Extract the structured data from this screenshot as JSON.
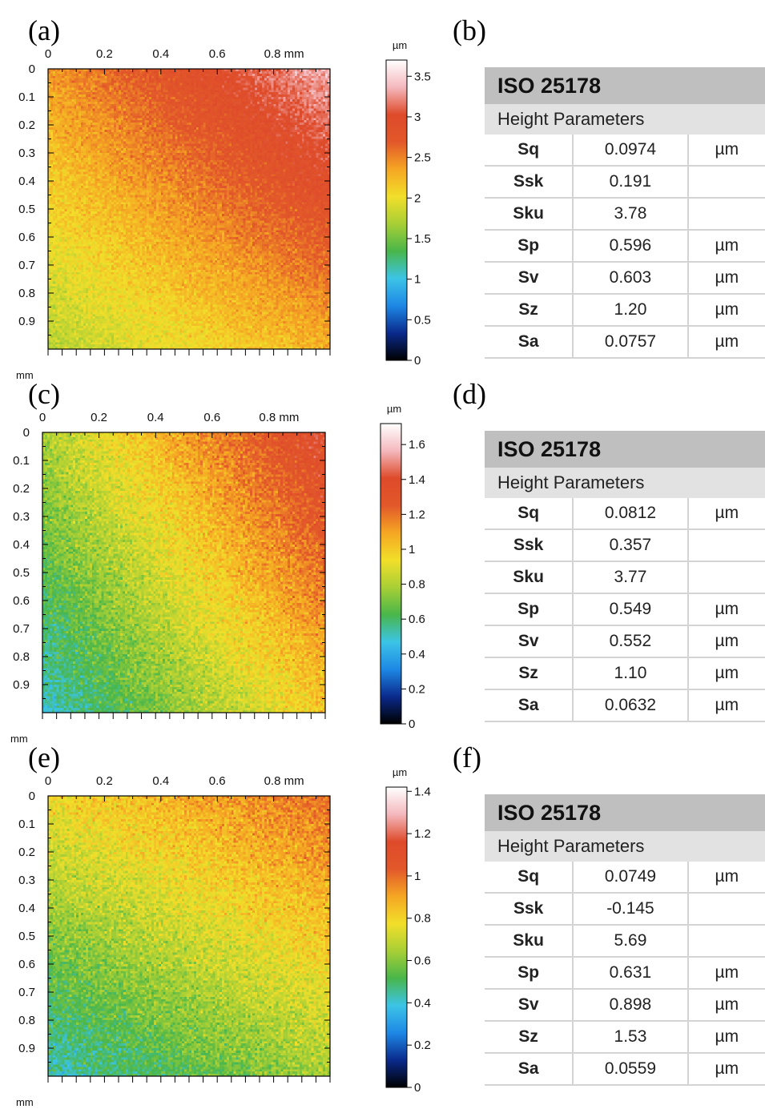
{
  "chart_data": [
    {
      "type": "heatmap",
      "panel_label": "(a)",
      "x_ticks": [
        "0",
        "0.2",
        "0.4",
        "0.6",
        "0.8 mm"
      ],
      "x_tick_values": [
        0,
        0.2,
        0.4,
        0.6,
        0.8
      ],
      "y_ticks": [
        "0",
        "0.1",
        "0.2",
        "0.3",
        "0.4",
        "0.5",
        "0.6",
        "0.7",
        "0.8",
        "0.9"
      ],
      "y_tick_values": [
        0,
        0.1,
        0.2,
        0.3,
        0.4,
        0.5,
        0.6,
        0.7,
        0.8,
        0.9
      ],
      "axis_unit": "mm",
      "xlim": [
        0,
        1
      ],
      "ylim": [
        0,
        1
      ],
      "colorbar": {
        "unit": "µm",
        "ticks": [
          "0",
          "0.5",
          "1",
          "1.5",
          "2",
          "2.5",
          "3",
          "3.5"
        ],
        "tick_values": [
          0,
          0.5,
          1,
          1.5,
          2,
          2.5,
          3,
          3.5
        ],
        "range": [
          0,
          3.7
        ]
      },
      "height_field": {
        "corners_um": {
          "top_left": 2.4,
          "top_right": 3.35,
          "bottom_left": 1.75,
          "bottom_right": 2.3
        },
        "noise_um": 0.13
      }
    },
    {
      "type": "heatmap",
      "panel_label": "(c)",
      "x_ticks": [
        "0",
        "0.2",
        "0.4",
        "0.6",
        "0.8 mm"
      ],
      "x_tick_values": [
        0,
        0.2,
        0.4,
        0.6,
        0.8
      ],
      "y_ticks": [
        "0",
        "0.1",
        "0.2",
        "0.3",
        "0.4",
        "0.5",
        "0.6",
        "0.7",
        "0.8",
        "0.9"
      ],
      "y_tick_values": [
        0,
        0.1,
        0.2,
        0.3,
        0.4,
        0.5,
        0.6,
        0.7,
        0.8,
        0.9
      ],
      "axis_unit": "mm",
      "xlim": [
        0,
        1
      ],
      "ylim": [
        0,
        1
      ],
      "colorbar": {
        "unit": "µm",
        "ticks": [
          "0",
          "0.2",
          "0.4",
          "0.6",
          "0.8",
          "1",
          "1.2",
          "1.4",
          "1.6"
        ],
        "tick_values": [
          0,
          0.2,
          0.4,
          0.6,
          0.8,
          1,
          1.2,
          1.4,
          1.6
        ],
        "range": [
          0,
          1.72
        ]
      },
      "height_field": {
        "corners_um": {
          "top_left": 0.8,
          "top_right": 1.4,
          "bottom_left": 0.5,
          "bottom_right": 1.0
        },
        "noise_um": 0.08
      }
    },
    {
      "type": "heatmap",
      "panel_label": "(e)",
      "x_ticks": [
        "0",
        "0.2",
        "0.4",
        "0.6",
        "0.8 mm"
      ],
      "x_tick_values": [
        0,
        0.2,
        0.4,
        0.6,
        0.8
      ],
      "y_ticks": [
        "0",
        "0.1",
        "0.2",
        "0.3",
        "0.4",
        "0.5",
        "0.6",
        "0.7",
        "0.8",
        "0.9"
      ],
      "y_tick_values": [
        0,
        0.1,
        0.2,
        0.3,
        0.4,
        0.5,
        0.6,
        0.7,
        0.8,
        0.9
      ],
      "axis_unit": "mm",
      "xlim": [
        0,
        1
      ],
      "ylim": [
        0,
        1
      ],
      "colorbar": {
        "unit": "µm",
        "ticks": [
          "0",
          "0.2",
          "0.4",
          "0.6",
          "0.8",
          "1",
          "1.2",
          "1.4"
        ],
        "tick_values": [
          0,
          0.2,
          0.4,
          0.6,
          0.8,
          1,
          1.2,
          1.4
        ],
        "range": [
          0,
          1.42
        ]
      },
      "height_field": {
        "corners_um": {
          "top_left": 0.78,
          "top_right": 1.0,
          "bottom_left": 0.42,
          "bottom_right": 0.65
        },
        "noise_um": 0.07
      }
    }
  ],
  "tables": [
    {
      "panel_label": "(b)",
      "title": "ISO 25178",
      "subtitle": "Height Parameters",
      "rows": [
        {
          "name": "Sq",
          "value": "0.0974",
          "unit": "µm"
        },
        {
          "name": "Ssk",
          "value": "0.191",
          "unit": ""
        },
        {
          "name": "Sku",
          "value": "3.78",
          "unit": ""
        },
        {
          "name": "Sp",
          "value": "0.596",
          "unit": "µm"
        },
        {
          "name": "Sv",
          "value": "0.603",
          "unit": "µm"
        },
        {
          "name": "Sz",
          "value": "1.20",
          "unit": "µm"
        },
        {
          "name": "Sa",
          "value": "0.0757",
          "unit": "µm"
        }
      ]
    },
    {
      "panel_label": "(d)",
      "title": "ISO 25178",
      "subtitle": "Height Parameters",
      "rows": [
        {
          "name": "Sq",
          "value": "0.0812",
          "unit": "µm"
        },
        {
          "name": "Ssk",
          "value": "0.357",
          "unit": ""
        },
        {
          "name": "Sku",
          "value": "3.77",
          "unit": ""
        },
        {
          "name": "Sp",
          "value": "0.549",
          "unit": "µm"
        },
        {
          "name": "Sv",
          "value": "0.552",
          "unit": "µm"
        },
        {
          "name": "Sz",
          "value": "1.10",
          "unit": "µm"
        },
        {
          "name": "Sa",
          "value": "0.0632",
          "unit": "µm"
        }
      ]
    },
    {
      "panel_label": "(f)",
      "title": "ISO 25178",
      "subtitle": "Height Parameters",
      "rows": [
        {
          "name": "Sq",
          "value": "0.0749",
          "unit": "µm"
        },
        {
          "name": "Ssk",
          "value": "-0.145",
          "unit": ""
        },
        {
          "name": "Sku",
          "value": "5.69",
          "unit": ""
        },
        {
          "name": "Sp",
          "value": "0.631",
          "unit": "µm"
        },
        {
          "name": "Sv",
          "value": "0.898",
          "unit": "µm"
        },
        {
          "name": "Sz",
          "value": "1.53",
          "unit": "µm"
        },
        {
          "name": "Sa",
          "value": "0.0559",
          "unit": "µm"
        }
      ]
    }
  ],
  "colors": {
    "colormap_stops": [
      "#000000",
      "#0a2a8c",
      "#1e88e5",
      "#3cc4e6",
      "#49b64a",
      "#a8cf35",
      "#f2df2a",
      "#f5a623",
      "#e2582a",
      "#de4a2a",
      "#f4b8bd",
      "#ffffff"
    ],
    "table_title_bg": "#bfbfbf",
    "table_subtitle_bg": "#e2e2e2",
    "table_grid": "#d4d4d4"
  }
}
